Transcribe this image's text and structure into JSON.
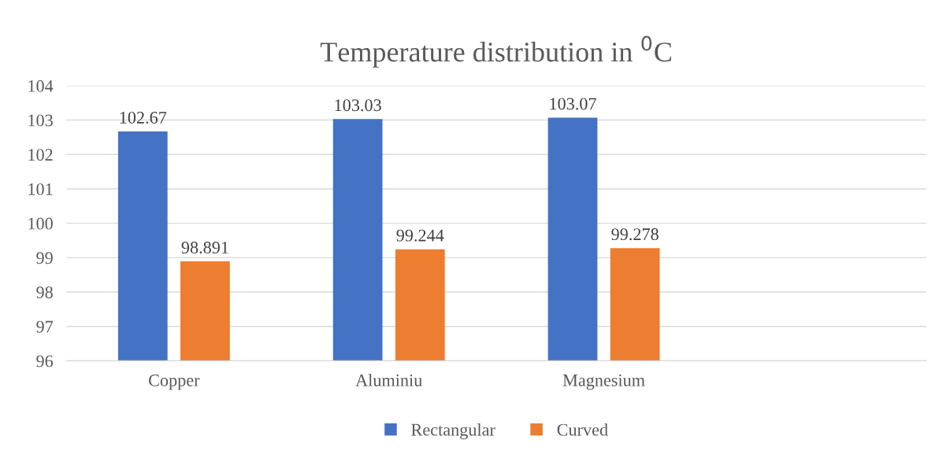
{
  "chart_data": {
    "type": "bar",
    "title": "Temperature distribution in $^{0}$C",
    "categories": [
      "Copper",
      "Aluminiu",
      "Magnesium",
      null
    ],
    "series": [
      {
        "name": "Rectangular",
        "color": "#4472c4",
        "values": [
          102.67,
          103.03,
          103.07,
          null
        ]
      },
      {
        "name": "Curved",
        "color": "#ed7d31",
        "values": [
          98.891,
          99.244,
          99.278,
          null
        ]
      }
    ],
    "ylim": [
      96,
      104
    ],
    "yticks": [
      96,
      97,
      98,
      99,
      100,
      101,
      102,
      103,
      104
    ],
    "grid": "y",
    "legend": "bottom",
    "data_labels": true
  }
}
